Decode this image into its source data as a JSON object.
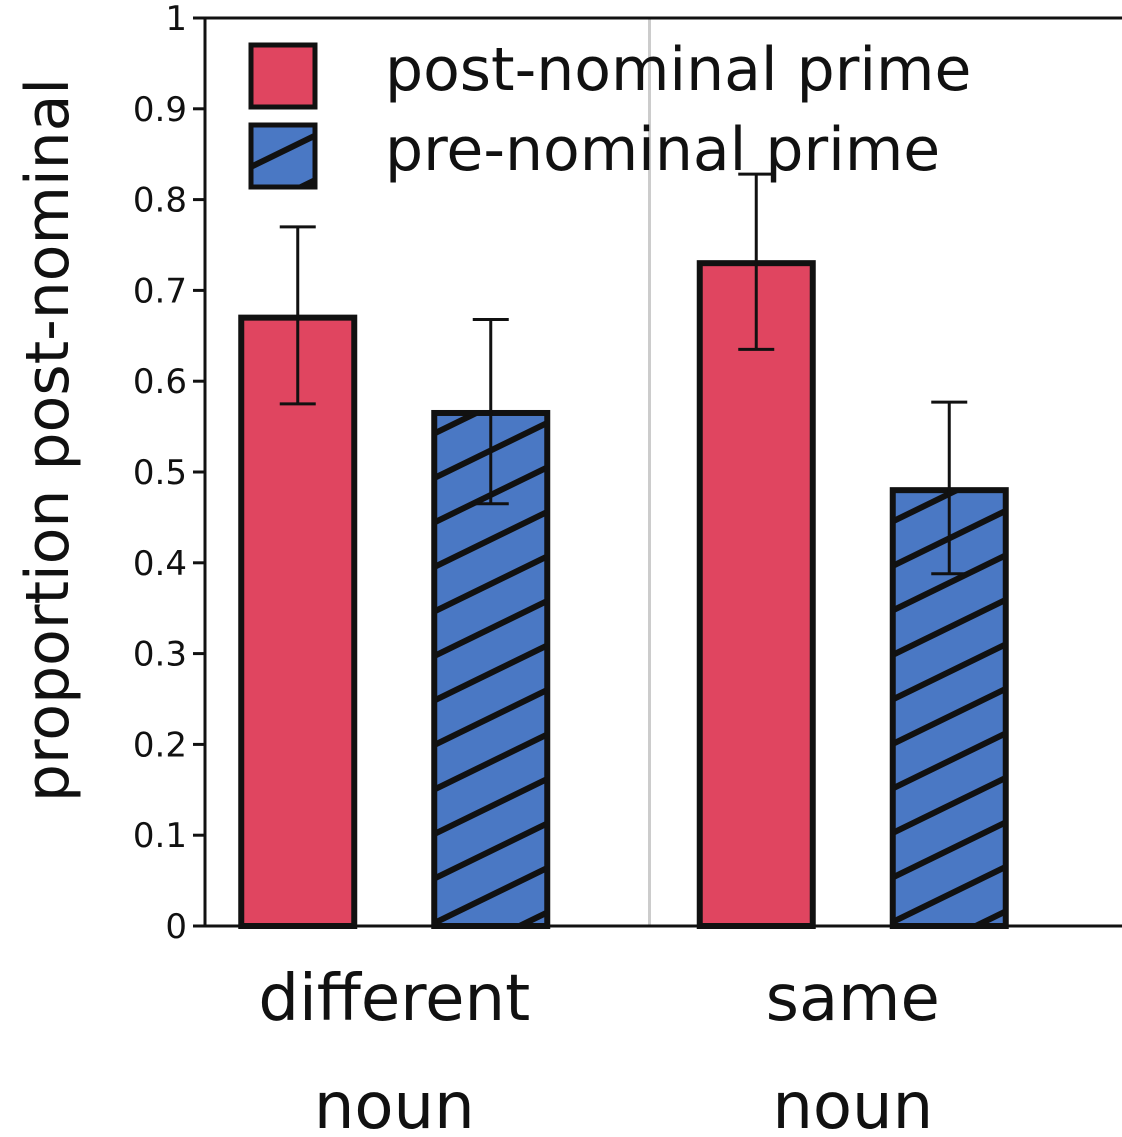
{
  "chart_data": {
    "type": "bar",
    "title": "",
    "xlabel": "",
    "ylabel": "proportion post-nominal",
    "ylim": [
      0,
      1
    ],
    "yticks": [
      "0",
      "0.1",
      "0.2",
      "0.3",
      "0.4",
      "0.5",
      "0.6",
      "0.7",
      "0.8",
      "0.9",
      "1"
    ],
    "categories": [
      {
        "line1": "different",
        "line2": "noun"
      },
      {
        "line1": "same",
        "line2": "noun"
      }
    ],
    "series": [
      {
        "name": "post-nominal prime",
        "color": "#e04560",
        "pattern": "solid",
        "values": [
          0.67,
          0.73
        ],
        "error_low": [
          0.575,
          0.635
        ],
        "error_high": [
          0.77,
          0.828
        ]
      },
      {
        "name": "pre-nominal prime",
        "color": "#4a78c4",
        "pattern": "diagonal-hatch",
        "values": [
          0.565,
          0.48
        ],
        "error_low": [
          0.465,
          0.388
        ],
        "error_high": [
          0.668,
          0.577
        ]
      }
    ],
    "legend_position": "top-left",
    "grid": false,
    "category_divider": true
  }
}
